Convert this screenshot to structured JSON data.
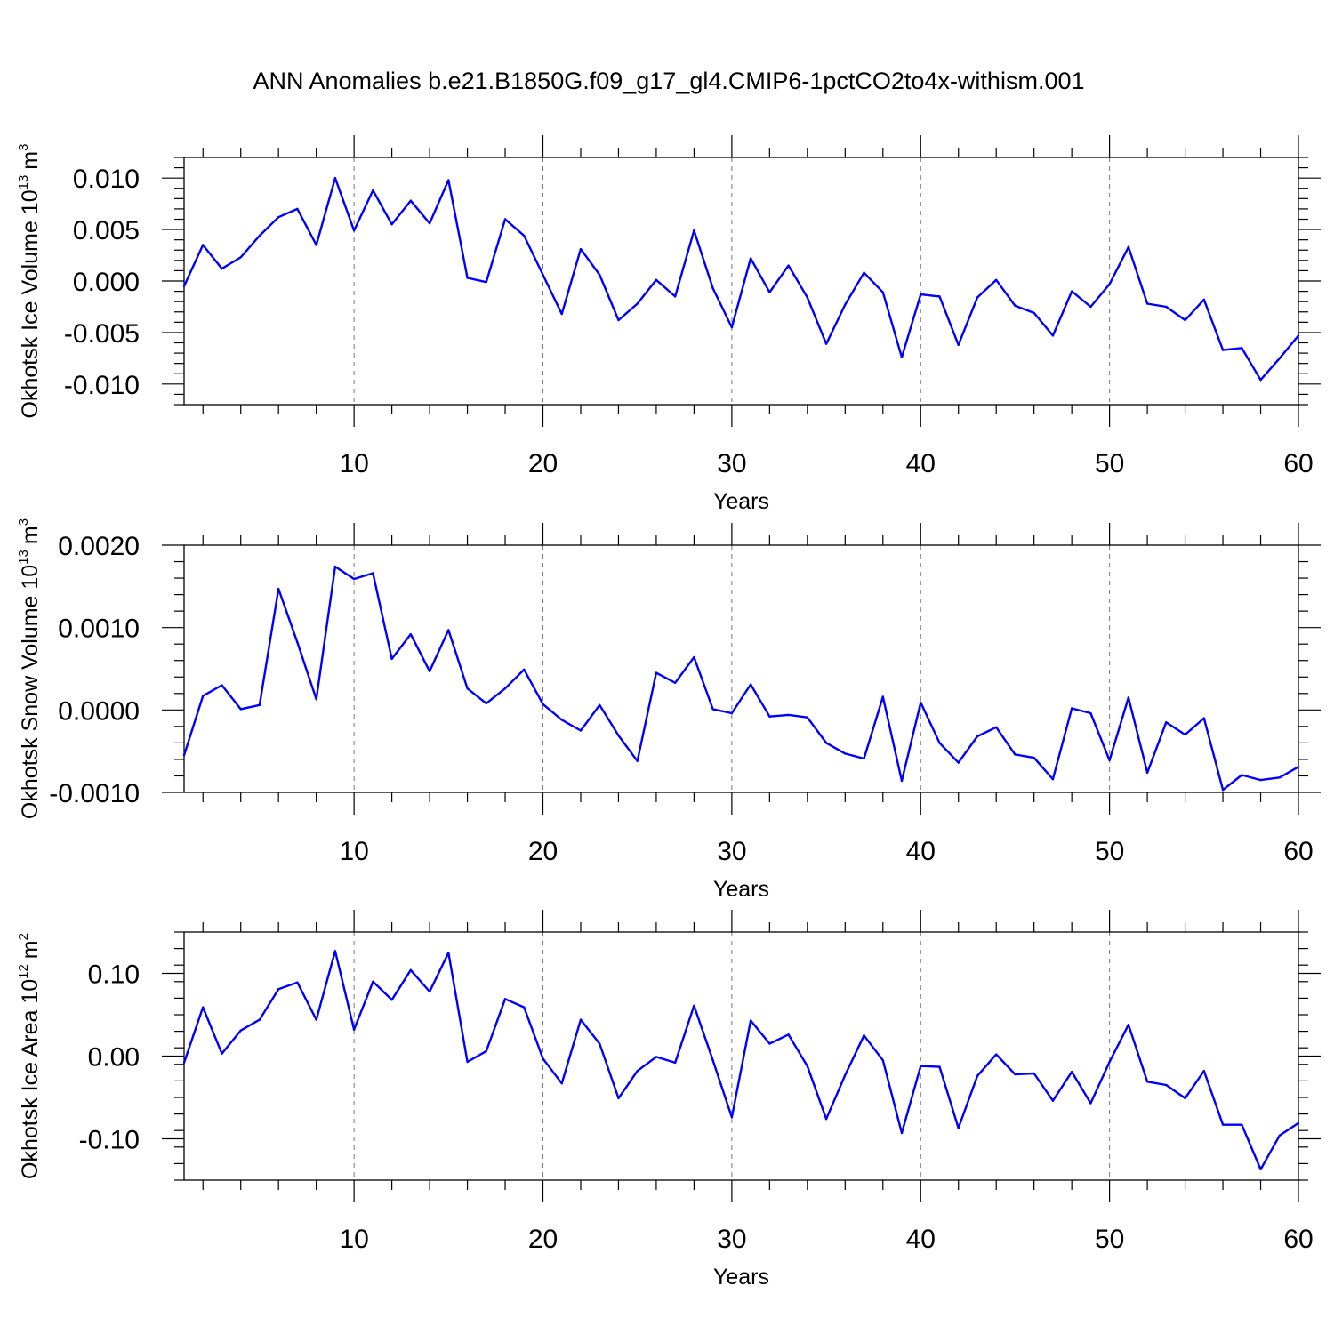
{
  "title": "ANN Anomalies b.e21.B1850G.f09_g17_gl4.CMIP6-1pctCO2to4x-withism.001",
  "line_color": "#0000ff",
  "chart_data": [
    {
      "type": "line",
      "name": "okhotsk-ice-volume",
      "ylabel": {
        "text": "Okhotsk Ice Volume 10",
        "exp": "13",
        "unit": "m",
        "unit_exp": "3"
      },
      "xlabel": "Years",
      "xlim": [
        1,
        60
      ],
      "xticks": [
        10,
        20,
        30,
        40,
        50,
        60
      ],
      "ylim": [
        -0.012,
        0.012
      ],
      "yticks": [
        {
          "v": 0.01,
          "label": "0.010"
        },
        {
          "v": 0.005,
          "label": "0.005"
        },
        {
          "v": 0.0,
          "label": "0.000"
        },
        {
          "v": -0.005,
          "label": "-0.005"
        },
        {
          "v": -0.01,
          "label": "-0.010"
        }
      ],
      "yminor": 0.001,
      "x": [
        1,
        2,
        3,
        4,
        5,
        6,
        7,
        8,
        9,
        10,
        11,
        12,
        13,
        14,
        15,
        16,
        17,
        18,
        19,
        20,
        21,
        22,
        23,
        24,
        25,
        26,
        27,
        28,
        29,
        30,
        31,
        32,
        33,
        34,
        35,
        36,
        37,
        38,
        39,
        40,
        41,
        42,
        43,
        44,
        45,
        46,
        47,
        48,
        49,
        50,
        51,
        52,
        53,
        54,
        55,
        56,
        57,
        58,
        59,
        60
      ],
      "values": [
        -0.0005,
        0.0035,
        0.0012,
        0.0023,
        0.0044,
        0.0062,
        0.007,
        0.0035,
        0.01,
        0.0049,
        0.0088,
        0.0055,
        0.0078,
        0.0056,
        0.0098,
        0.0003,
        -0.0001,
        0.006,
        0.0044,
        0.0006,
        -0.0032,
        0.0031,
        0.0006,
        -0.0038,
        -0.0022,
        0.0001,
        -0.0015,
        0.0049,
        -0.0007,
        -0.0045,
        0.0022,
        -0.0011,
        0.0015,
        -0.0016,
        -0.0061,
        -0.0023,
        0.0008,
        -0.0011,
        -0.0074,
        -0.0013,
        -0.0015,
        -0.0062,
        -0.0016,
        0.0001,
        -0.0024,
        -0.0031,
        -0.0053,
        -0.001,
        -0.0025,
        -0.0003,
        0.0033,
        -0.0022,
        -0.0025,
        -0.0038,
        -0.0018,
        -0.0067,
        -0.0065,
        -0.0096,
        -0.0075,
        -0.0053
      ]
    },
    {
      "type": "line",
      "name": "okhotsk-snow-volume",
      "ylabel": {
        "text": "Okhotsk Snow Volume 10",
        "exp": "13",
        "unit": "m",
        "unit_exp": "3"
      },
      "xlabel": "Years",
      "xlim": [
        1,
        60
      ],
      "xticks": [
        10,
        20,
        30,
        40,
        50,
        60
      ],
      "ylim": [
        -0.001,
        0.002
      ],
      "yticks": [
        {
          "v": 0.002,
          "label": "0.0020"
        },
        {
          "v": 0.001,
          "label": "0.0010"
        },
        {
          "v": 0.0,
          "label": "0.0000"
        },
        {
          "v": -0.001,
          "label": "-0.0010"
        }
      ],
      "yminor": 0.0002,
      "x": [
        1,
        2,
        3,
        4,
        5,
        6,
        7,
        8,
        9,
        10,
        11,
        12,
        13,
        14,
        15,
        16,
        17,
        18,
        19,
        20,
        21,
        22,
        23,
        24,
        25,
        26,
        27,
        28,
        29,
        30,
        31,
        32,
        33,
        34,
        35,
        36,
        37,
        38,
        39,
        40,
        41,
        42,
        43,
        44,
        45,
        46,
        47,
        48,
        49,
        50,
        51,
        52,
        53,
        54,
        55,
        56,
        57,
        58,
        59,
        60
      ],
      "values": [
        -0.00055,
        0.00017,
        0.0003,
        1e-05,
        6e-05,
        0.00147,
        0.00082,
        0.00013,
        0.00174,
        0.00159,
        0.00166,
        0.00062,
        0.00092,
        0.00047,
        0.00097,
        0.00026,
        8e-05,
        0.00026,
        0.00049,
        7e-05,
        -0.00012,
        -0.00025,
        6e-05,
        -0.00031,
        -0.00062,
        0.00045,
        0.00033,
        0.00064,
        1e-05,
        -4e-05,
        0.00031,
        -8e-05,
        -6e-05,
        -9e-05,
        -0.0004,
        -0.00053,
        -0.00059,
        0.00016,
        -0.00086,
        9e-05,
        -0.0004,
        -0.00064,
        -0.00032,
        -0.00021,
        -0.00054,
        -0.00058,
        -0.00084,
        2e-05,
        -4e-05,
        -0.00061,
        0.00015,
        -0.00076,
        -0.00015,
        -0.0003,
        -0.0001,
        -0.00097,
        -0.00079,
        -0.00085,
        -0.00082,
        -0.00069
      ]
    },
    {
      "type": "line",
      "name": "okhotsk-ice-area",
      "ylabel": {
        "text": "Okhotsk Ice Area 10",
        "exp": "12",
        "unit": "m",
        "unit_exp": "2"
      },
      "xlabel": "Years",
      "xlim": [
        1,
        60
      ],
      "xticks": [
        10,
        20,
        30,
        40,
        50,
        60
      ],
      "ylim": [
        -0.15,
        0.15
      ],
      "yticks": [
        {
          "v": 0.1,
          "label": "0.10"
        },
        {
          "v": 0.0,
          "label": "0.00"
        },
        {
          "v": -0.1,
          "label": "-0.10"
        }
      ],
      "yminor": 0.02,
      "x": [
        1,
        2,
        3,
        4,
        5,
        6,
        7,
        8,
        9,
        10,
        11,
        12,
        13,
        14,
        15,
        16,
        17,
        18,
        19,
        20,
        21,
        22,
        23,
        24,
        25,
        26,
        27,
        28,
        29,
        30,
        31,
        32,
        33,
        34,
        35,
        36,
        37,
        38,
        39,
        40,
        41,
        42,
        43,
        44,
        45,
        46,
        47,
        48,
        49,
        50,
        51,
        52,
        53,
        54,
        55,
        56,
        57,
        58,
        59,
        60
      ],
      "values": [
        -0.008,
        0.059,
        0.003,
        0.031,
        0.044,
        0.081,
        0.089,
        0.044,
        0.127,
        0.032,
        0.09,
        0.068,
        0.104,
        0.078,
        0.125,
        -0.007,
        0.006,
        0.069,
        0.059,
        -0.003,
        -0.033,
        0.044,
        0.015,
        -0.051,
        -0.018,
        -0.001,
        -0.008,
        0.061,
        -0.005,
        -0.074,
        0.043,
        0.015,
        0.026,
        -0.012,
        -0.076,
        -0.023,
        0.025,
        -0.005,
        -0.093,
        -0.012,
        -0.013,
        -0.087,
        -0.024,
        0.002,
        -0.022,
        -0.021,
        -0.054,
        -0.019,
        -0.057,
        -0.007,
        0.038,
        -0.031,
        -0.035,
        -0.051,
        -0.018,
        -0.083,
        -0.083,
        -0.137,
        -0.096,
        -0.081
      ]
    }
  ]
}
